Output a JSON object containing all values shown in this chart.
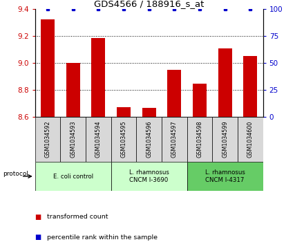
{
  "title": "GDS4566 / 188916_s_at",
  "categories": [
    "GSM1034592",
    "GSM1034593",
    "GSM1034594",
    "GSM1034595",
    "GSM1034596",
    "GSM1034597",
    "GSM1034598",
    "GSM1034599",
    "GSM1034600"
  ],
  "red_values": [
    9.32,
    9.0,
    9.185,
    8.67,
    8.665,
    8.945,
    8.845,
    9.105,
    9.05
  ],
  "blue_values": [
    100,
    100,
    100,
    100,
    100,
    100,
    100,
    100,
    100
  ],
  "ylim_left": [
    8.6,
    9.4
  ],
  "ylim_right": [
    0,
    100
  ],
  "yticks_left": [
    8.6,
    8.8,
    9.0,
    9.2,
    9.4
  ],
  "yticks_right": [
    0,
    25,
    50,
    75,
    100
  ],
  "protocol_labels": [
    "E. coli control",
    "L. rhamnosus\nCNCM I-3690",
    "L. rhamnosus\nCNCM I-4317"
  ],
  "protocol_groups": [
    3,
    3,
    3
  ],
  "protocol_colors": [
    "#ccffcc",
    "#ccffcc",
    "#66cc66"
  ],
  "bar_color": "#cc0000",
  "blue_color": "#0000cc",
  "tick_color_left": "#cc0000",
  "tick_color_right": "#0000cc",
  "sample_box_color": "#d8d8d8",
  "legend_items": [
    "transformed count",
    "percentile rank within the sample"
  ]
}
